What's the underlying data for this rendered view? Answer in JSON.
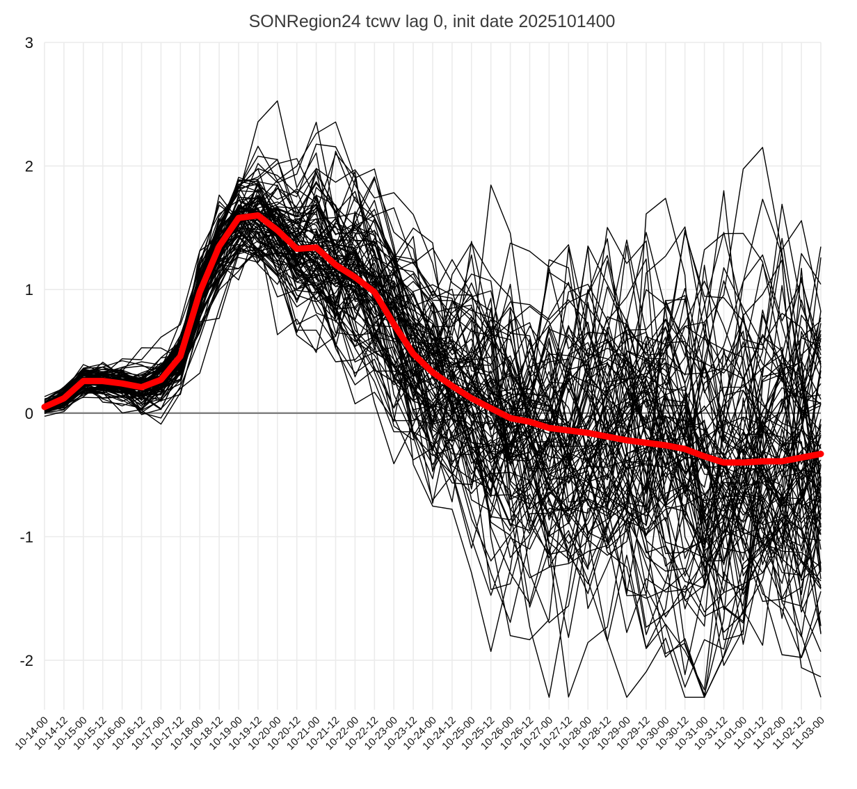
{
  "chart_data": {
    "type": "line",
    "title": "SONRegion24 tcwv lag 0, init date 2025101400",
    "xlabel": "",
    "ylabel": "",
    "x": [
      "10-14-00",
      "10-14-12",
      "10-15-00",
      "10-15-12",
      "10-16-00",
      "10-16-12",
      "10-17-00",
      "10-17-12",
      "10-18-00",
      "10-18-12",
      "10-19-00",
      "10-19-12",
      "10-20-00",
      "10-20-12",
      "10-21-00",
      "10-21-12",
      "10-22-00",
      "10-22-12",
      "10-23-00",
      "10-23-12",
      "10-24-00",
      "10-24-12",
      "10-25-00",
      "10-25-12",
      "10-26-00",
      "10-26-12",
      "10-27-00",
      "10-27-12",
      "10-28-00",
      "10-28-12",
      "10-29-00",
      "10-29-12",
      "10-30-00",
      "10-30-12",
      "10-31-00",
      "10-31-12",
      "11-01-00",
      "11-01-12",
      "11-02-00",
      "11-02-12",
      "11-03-00"
    ],
    "yticks": [
      "-2",
      "-1",
      "0",
      "1",
      "2",
      "3"
    ],
    "ylim": [
      -2.4,
      3.0
    ],
    "grid": true,
    "legend": "none",
    "ensemble_members": 100,
    "ensemble_color": "#000000",
    "mean_color": "#ff0000",
    "zero_line_color": "#808080",
    "mean": [
      0.05,
      0.12,
      0.26,
      0.26,
      0.24,
      0.21,
      0.27,
      0.46,
      0.98,
      1.35,
      1.58,
      1.6,
      1.48,
      1.33,
      1.34,
      1.2,
      1.1,
      0.98,
      0.72,
      0.48,
      0.33,
      0.22,
      0.12,
      0.04,
      -0.04,
      -0.07,
      -0.12,
      -0.14,
      -0.16,
      -0.19,
      -0.22,
      -0.24,
      -0.26,
      -0.29,
      -0.35,
      -0.4,
      -0.4,
      -0.39,
      -0.39,
      -0.36,
      -0.33
    ]
  }
}
